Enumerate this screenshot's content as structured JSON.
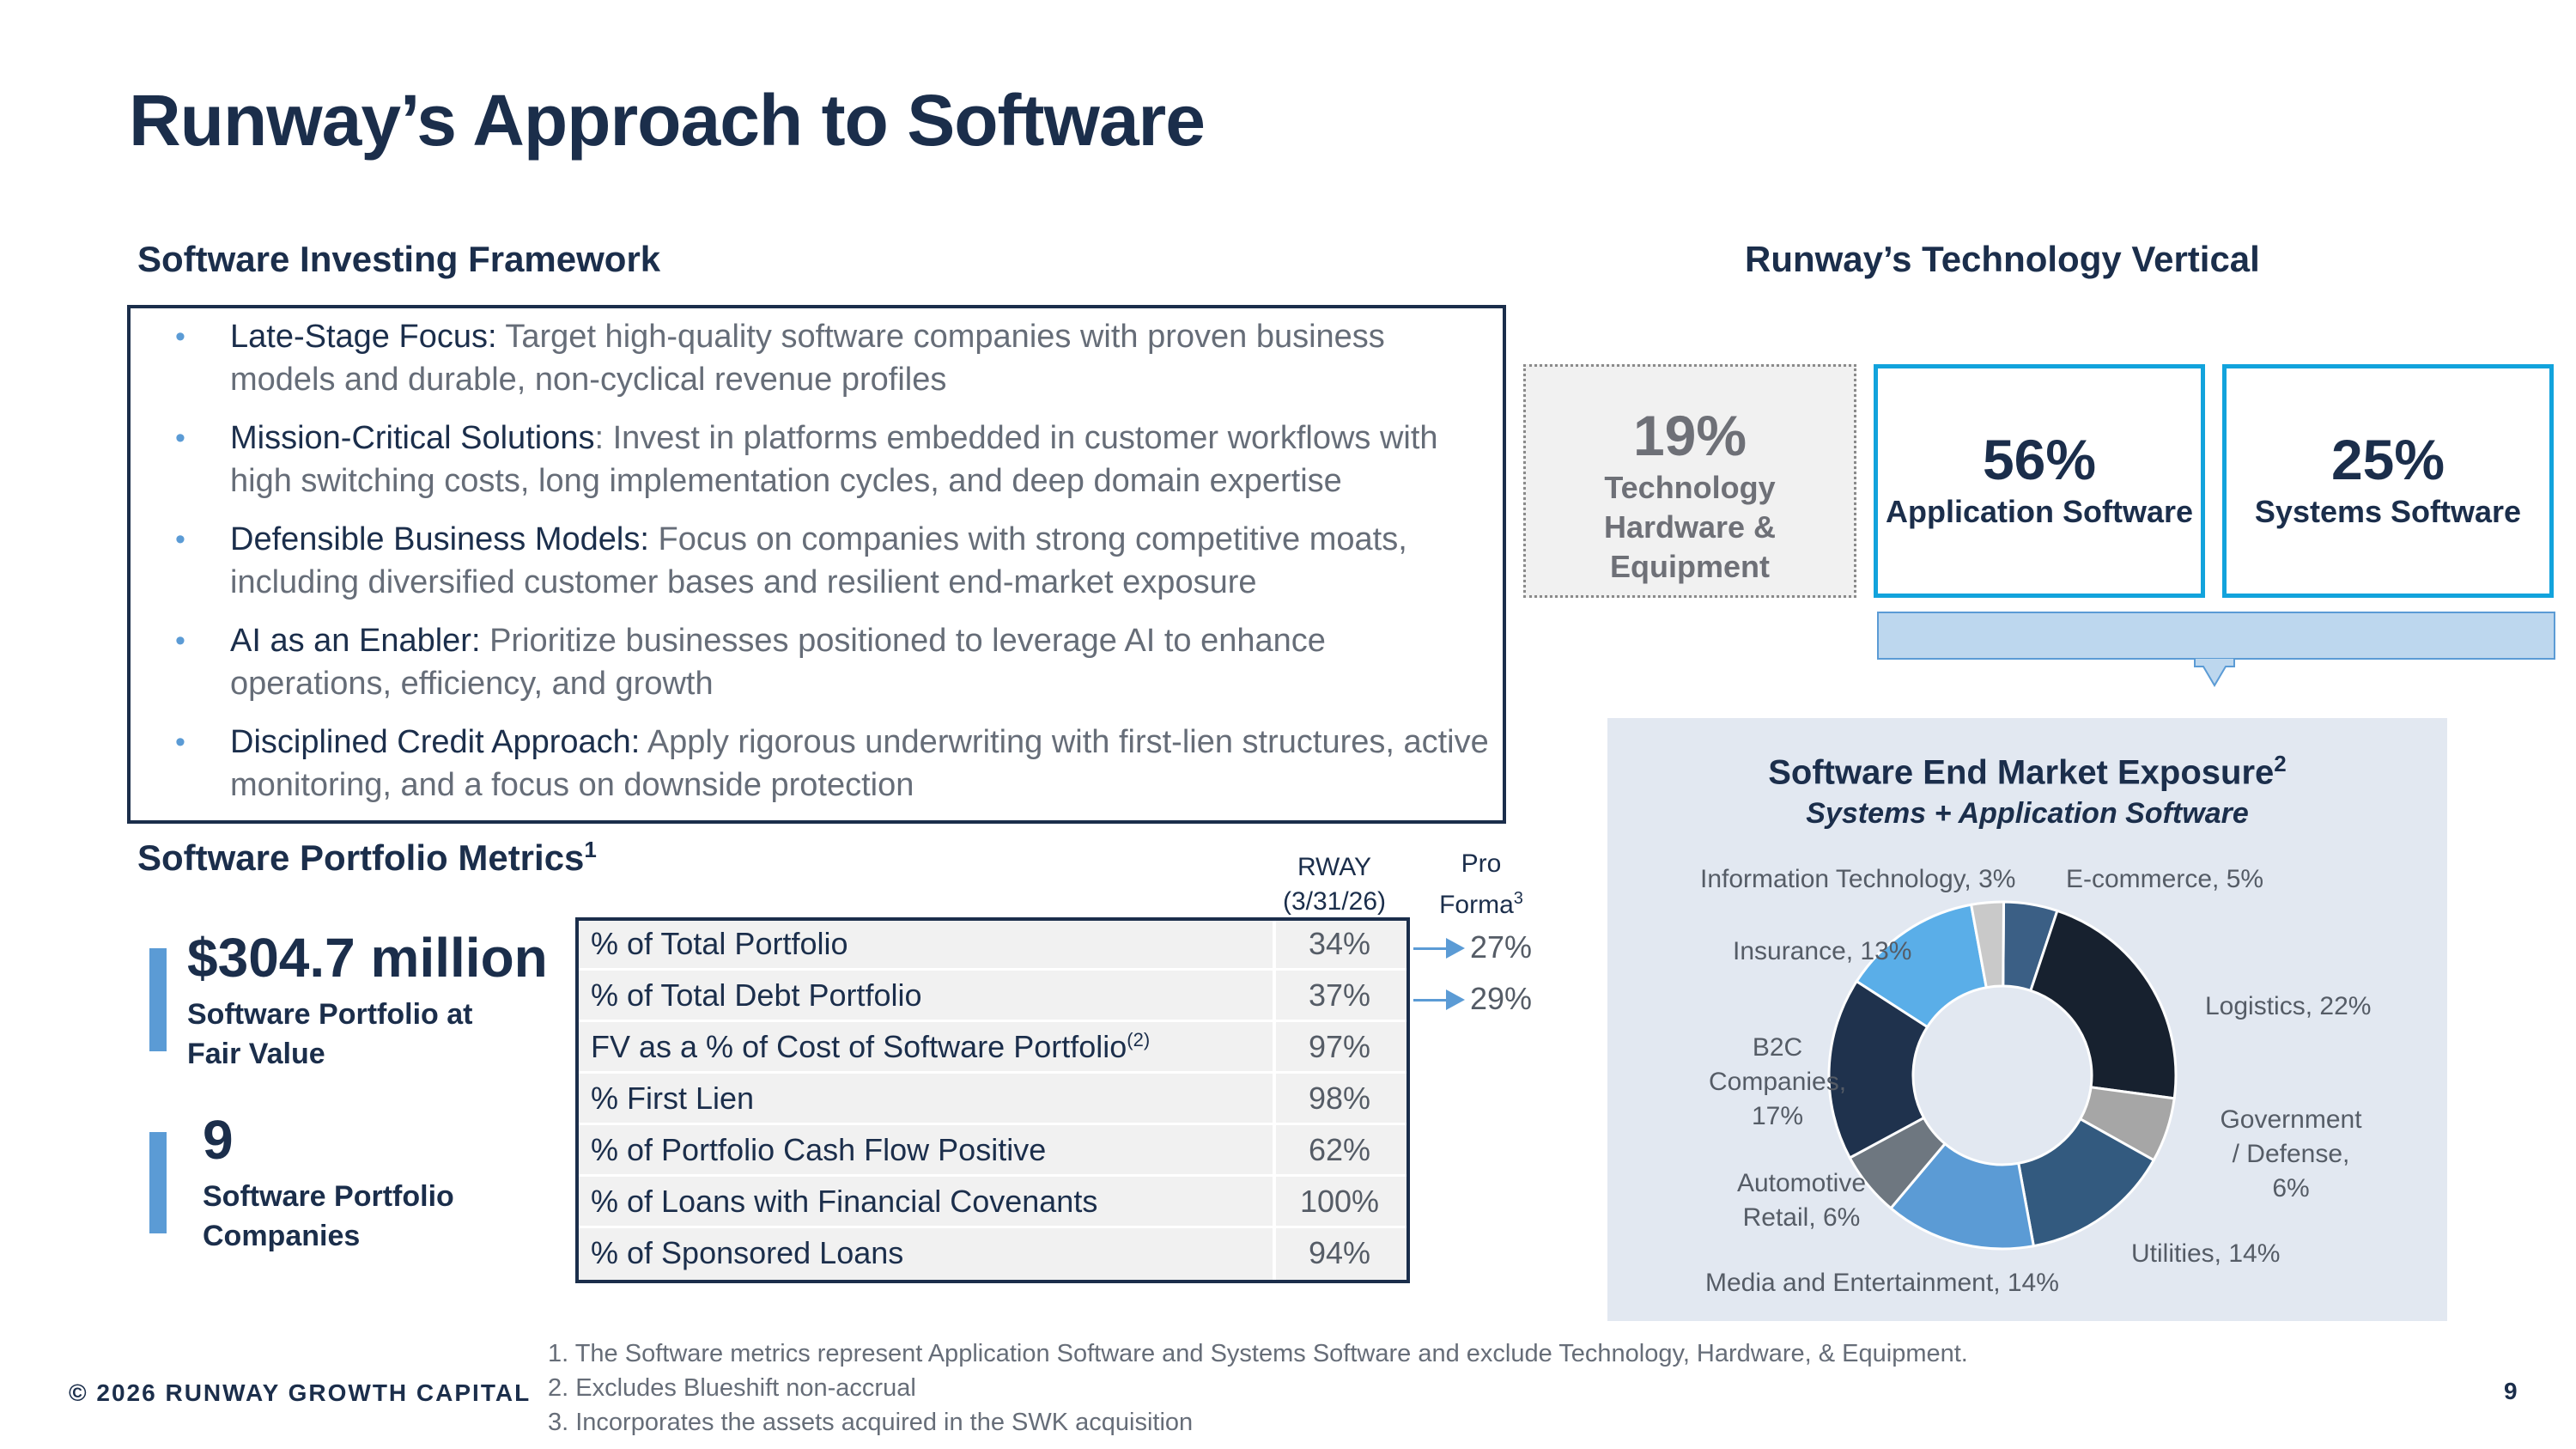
{
  "title": "Runway’s Approach to Software",
  "framework": {
    "heading": "Software Investing Framework",
    "bullets": [
      {
        "lead": "Late-Stage Focus:",
        "text": " Target high-quality software companies with proven business models and durable, non-cyclical revenue profiles"
      },
      {
        "lead": "Mission-Critical Solutions",
        "text": ": Invest in platforms embedded in customer workflows with high switching costs, long implementation cycles, and deep domain expertise"
      },
      {
        "lead": "Defensible Business Models:",
        "text": " Focus on companies with strong competitive moats, including diversified customer bases and resilient end-market exposure"
      },
      {
        "lead": "AI as an Enabler:",
        "text": " Prioritize businesses positioned to leverage AI to enhance operations, efficiency, and growth"
      },
      {
        "lead": "Disciplined Credit Approach:",
        "text": " Apply rigorous underwriting with first-lien structures, active monitoring, and a focus on downside protection"
      }
    ]
  },
  "metrics": {
    "heading": "Software Portfolio Metrics",
    "heading_sup": "1",
    "kpis": [
      {
        "value": "$304.7 million",
        "label": "Software Portfolio at Fair Value"
      },
      {
        "value": "9",
        "label": "Software Portfolio Companies"
      }
    ],
    "col_rway": "RWAY (3/31/26)",
    "col_proforma": "Pro Forma",
    "col_proforma_sup": "3",
    "rows": [
      {
        "label": "% of Total Portfolio",
        "sup": "",
        "value": "34%",
        "proforma": "27%"
      },
      {
        "label": "% of Total Debt Portfolio",
        "sup": "",
        "value": "37%",
        "proforma": "29%"
      },
      {
        "label": "FV as a % of Cost of Software Portfolio",
        "sup": "(2)",
        "value": "97%",
        "proforma": ""
      },
      {
        "label": "% First Lien",
        "sup": "",
        "value": "98%",
        "proforma": ""
      },
      {
        "label": "% of Portfolio Cash Flow Positive",
        "sup": "",
        "value": "62%",
        "proforma": ""
      },
      {
        "label": "% of Loans with Financial Covenants",
        "sup": "",
        "value": "100%",
        "proforma": ""
      },
      {
        "label": "% of Sponsored Loans",
        "sup": "",
        "value": "94%",
        "proforma": ""
      }
    ]
  },
  "vertical": {
    "heading": "Runway’s Technology Vertical",
    "boxes": [
      {
        "pct": "19%",
        "label": "Technology Hardware & Equipment"
      },
      {
        "pct": "56%",
        "label": "Application Software"
      },
      {
        "pct": "25%",
        "label": "Systems Software"
      }
    ]
  },
  "chart_data": {
    "type": "pie",
    "title": "Software End Market Exposure",
    "title_sup": "2",
    "subtitle": "Systems + Application Software",
    "slices": [
      {
        "name": "E-commerce",
        "value": 5,
        "label": "E-commerce, 5%",
        "color": "#3b5f85"
      },
      {
        "name": "Logistics",
        "value": 22,
        "label": "Logistics, 22%",
        "color": "#17212f"
      },
      {
        "name": "Government / Defense",
        "value": 6,
        "label": "Government / Defense, 6%",
        "color": "#a6a6a6"
      },
      {
        "name": "Utilities",
        "value": 14,
        "label": "Utilities, 14%",
        "color": "#335a7f"
      },
      {
        "name": "Media and Entertainment",
        "value": 14,
        "label": "Media and Entertainment, 14%",
        "color": "#5b9bd5"
      },
      {
        "name": "Automotive Retail",
        "value": 6,
        "label": "Automotive Retail, 6%",
        "color": "#6e7780"
      },
      {
        "name": "B2C Companies",
        "value": 17,
        "label": "B2C Companies, 17%",
        "color": "#1f324d"
      },
      {
        "name": "Insurance",
        "value": 13,
        "label": "Insurance, 13%",
        "color": "#5aaee8"
      },
      {
        "name": "Information Technology",
        "value": 3,
        "label": "Information Technology, 3%",
        "color": "#c9c9c9"
      }
    ]
  },
  "footer": {
    "copyright": "© 2026 RUNWAY GROWTH CAPITAL",
    "footnotes": [
      "1.  The Software metrics represent Application Software and Systems Software and exclude Technology, Hardware, & Equipment.",
      "2.  Excludes Blueshift non-accrual",
      "3.  Incorporates the assets acquired in the SWK acquisition"
    ],
    "page_number": "9"
  }
}
